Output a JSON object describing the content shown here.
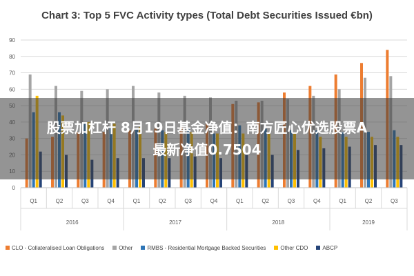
{
  "overlay": {
    "line1": "股票加杠杆 8月19日基金净值：南方匠心优选股票A",
    "line2": "最新净值0.7504"
  },
  "chart_data": {
    "type": "bar",
    "title": "Chart 3: Top 5 FVC Activity types (Total Debt Securities Issued €bn)",
    "ylim": [
      0,
      90
    ],
    "yticks": [
      0,
      10,
      20,
      30,
      40,
      50,
      60,
      70,
      80,
      90
    ],
    "grid": true,
    "legend_position": "bottom",
    "categories": [
      "Q1",
      "Q2",
      "Q3",
      "Q4",
      "Q1",
      "Q2",
      "Q3",
      "Q4",
      "Q1",
      "Q2",
      "Q3",
      "Q4",
      "Q1",
      "Q2",
      "Q3"
    ],
    "groups": [
      {
        "label": "2016",
        "span": 4
      },
      {
        "label": "2017",
        "span": 4
      },
      {
        "label": "2018",
        "span": 4
      },
      {
        "label": "2019",
        "span": 3
      }
    ],
    "series": [
      {
        "name": "CLO - Collateralised Loan Obligations",
        "color": "#ed7d31",
        "values": [
          30,
          31,
          34,
          34,
          35,
          36,
          37,
          39,
          51,
          52,
          58,
          62,
          69,
          76,
          84
        ]
      },
      {
        "name": "Other",
        "color": "#a5a5a5",
        "values": [
          69,
          62,
          59,
          60,
          62,
          58,
          56,
          55,
          53,
          53,
          54,
          56,
          60,
          67,
          68
        ]
      },
      {
        "name": "RMBS - Residential Mortgage Backed Securities",
        "color": "#2e75b6",
        "values": [
          46,
          46,
          39,
          37,
          36,
          35,
          36,
          33,
          38,
          36,
          35,
          35,
          34,
          34,
          35
        ]
      },
      {
        "name": "Other CDO",
        "color": "#ffc000",
        "values": [
          56,
          44,
          40,
          39,
          37,
          34,
          34,
          33,
          33,
          33,
          33,
          31,
          31,
          31,
          31
        ]
      },
      {
        "name": "ABCP",
        "color": "#264478",
        "values": [
          22,
          20,
          17,
          18,
          18,
          18,
          19,
          18,
          21,
          20,
          23,
          24,
          25,
          26,
          26
        ]
      }
    ]
  }
}
